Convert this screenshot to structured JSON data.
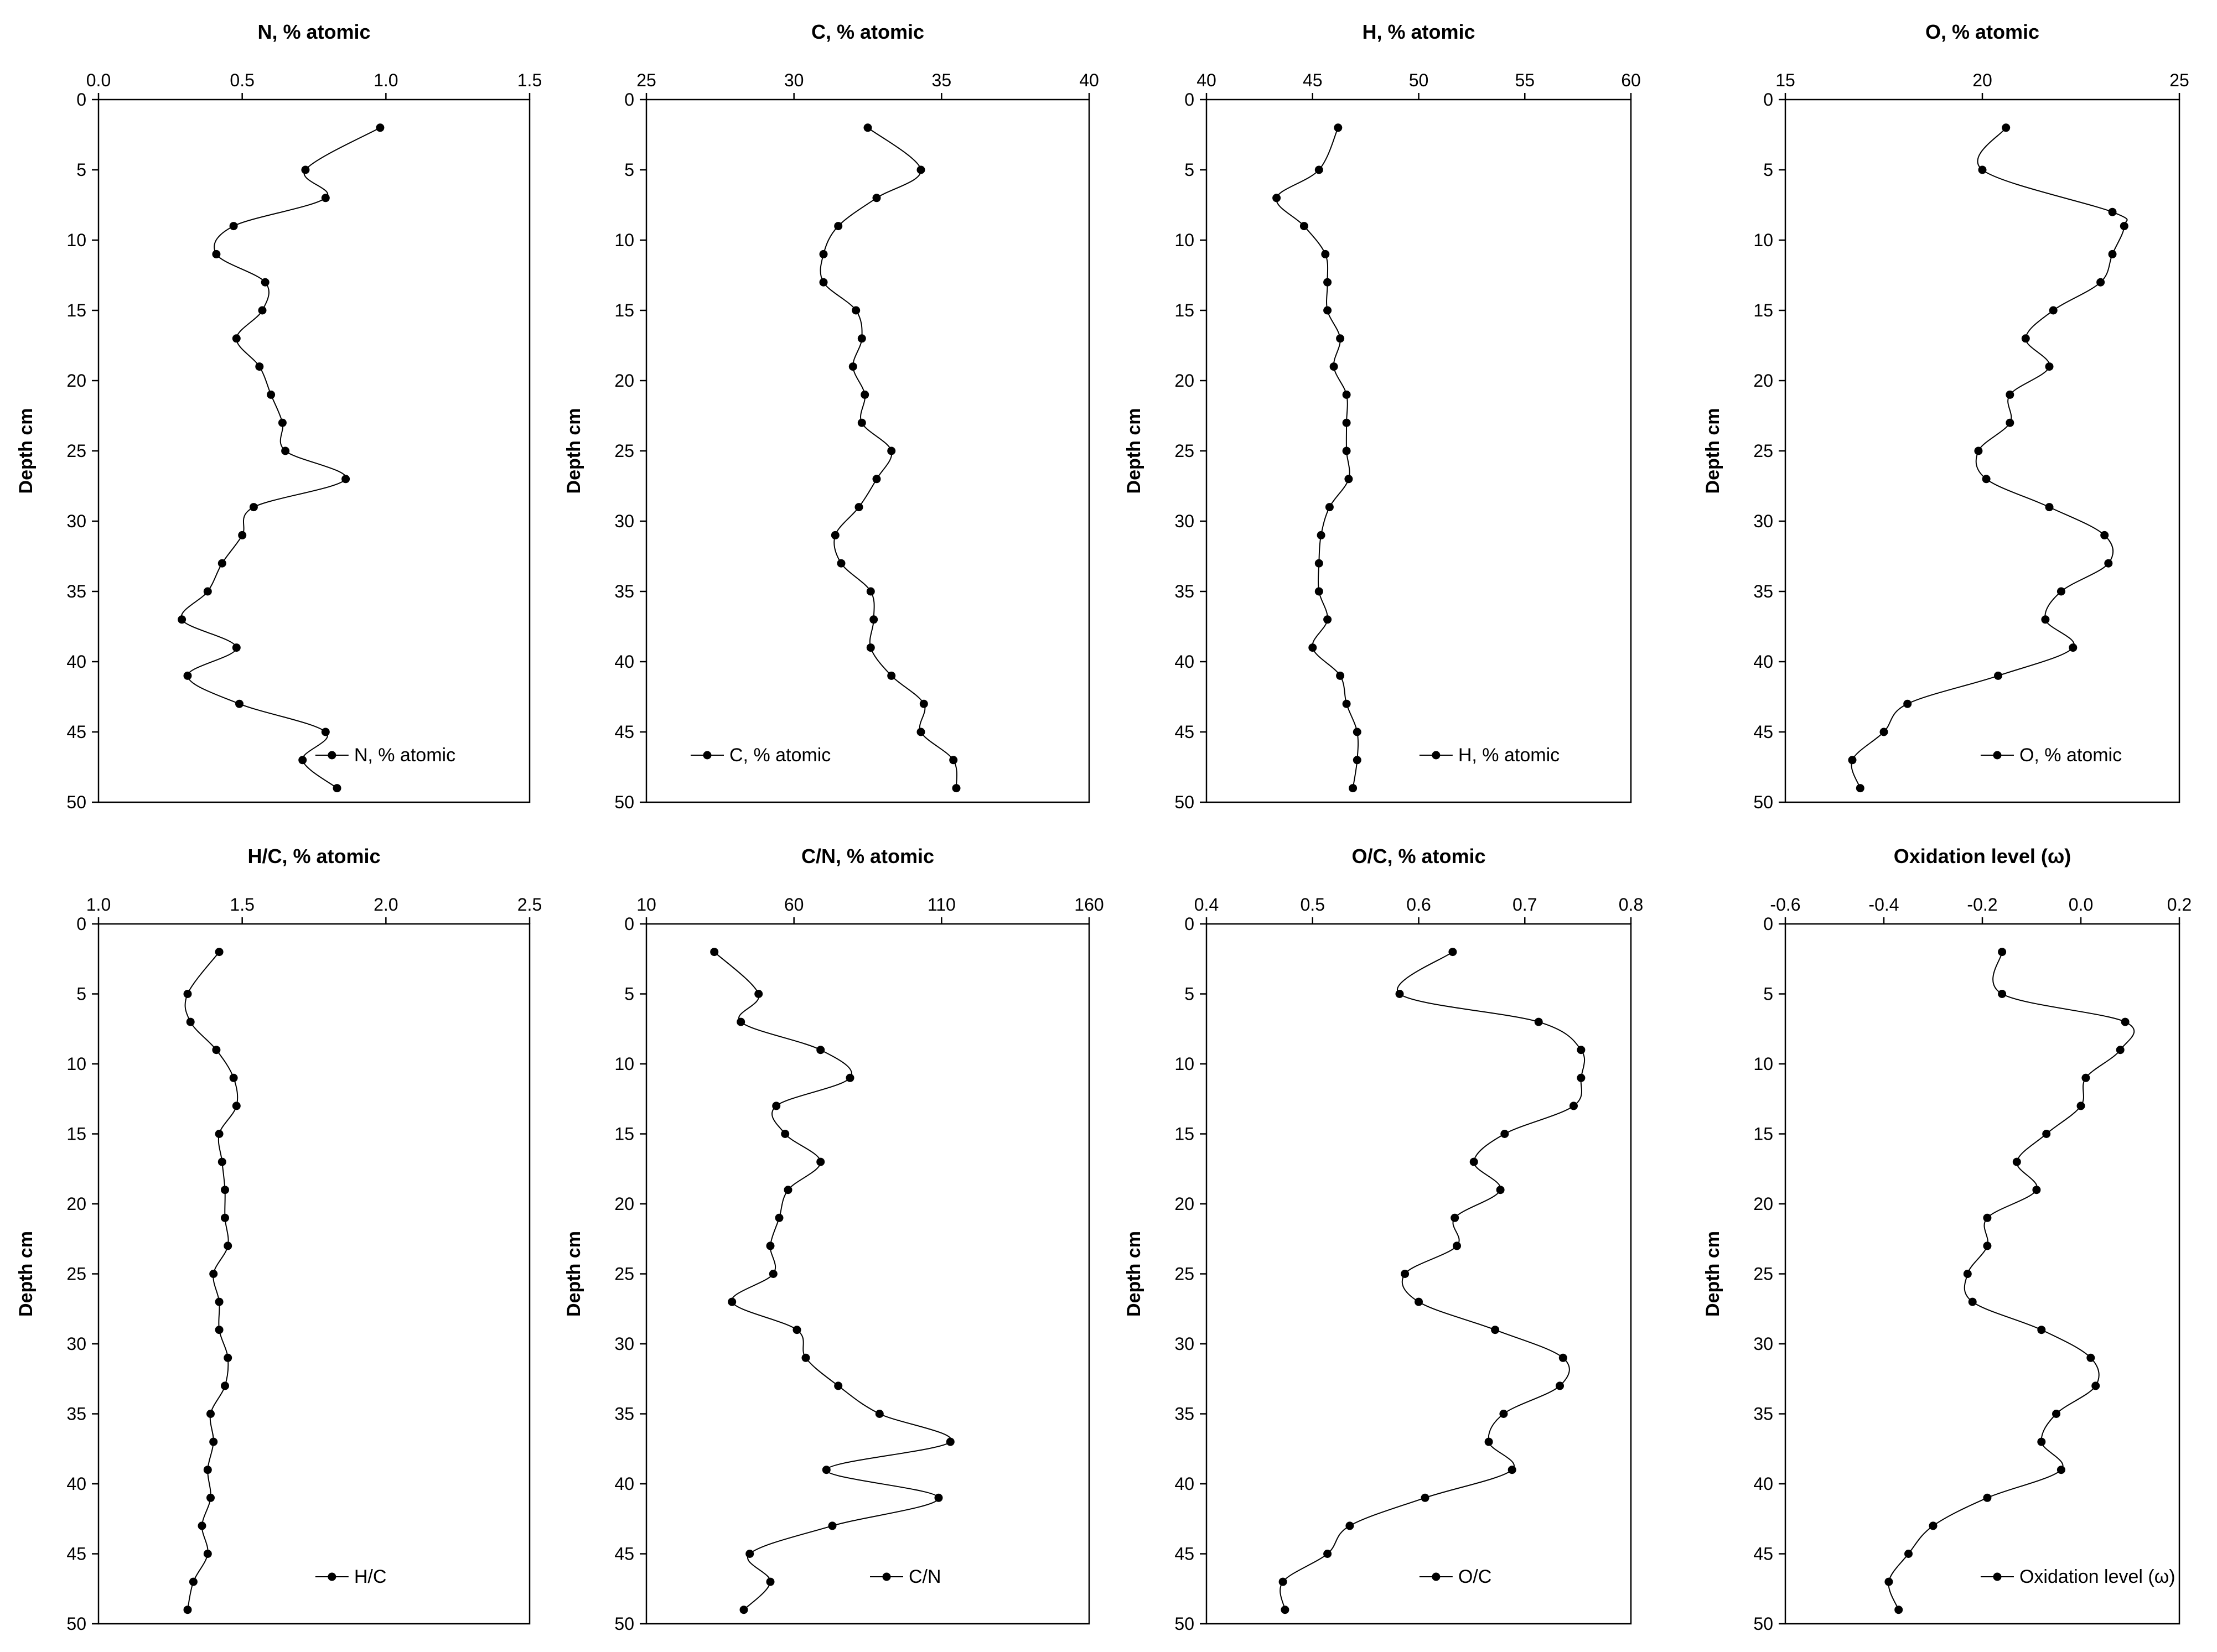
{
  "chart_data": [
    {
      "type": "line",
      "title": "N, % atomic",
      "xlabel": "N, % atomic",
      "ylabel": "Depth cm",
      "xlim": [
        0,
        1.5
      ],
      "xticks": [
        "0.0",
        "0.5",
        "1.0",
        "1.5"
      ],
      "ylim": [
        0,
        50
      ],
      "yticks": [
        "0",
        "5",
        "10",
        "15",
        "20",
        "25",
        "30",
        "35",
        "40",
        "45",
        "50"
      ],
      "legend": "N, % atomic",
      "legend_position": "bottom-right",
      "series": [
        {
          "name": "N, % atomic",
          "x": [
            0.98,
            0.72,
            0.79,
            0.47,
            0.41,
            0.58,
            0.57,
            0.48,
            0.56,
            0.6,
            0.64,
            0.65,
            0.86,
            0.54,
            0.5,
            0.43,
            0.38,
            0.29,
            0.48,
            0.31,
            0.49,
            0.79,
            0.71,
            0.83
          ],
          "y": [
            2,
            5,
            7,
            9,
            11,
            13,
            15,
            17,
            19,
            21,
            23,
            25,
            27,
            29,
            31,
            33,
            35,
            37,
            39,
            41,
            43,
            45,
            47,
            49
          ]
        }
      ]
    },
    {
      "type": "line",
      "title": "C, % atomic",
      "xlabel": "C, % atomic",
      "ylabel": "Depth cm",
      "xlim": [
        25,
        40
      ],
      "xticks": [
        "25",
        "30",
        "35",
        "40"
      ],
      "ylim": [
        0,
        50
      ],
      "yticks": [
        "0",
        "5",
        "10",
        "15",
        "20",
        "25",
        "30",
        "35",
        "40",
        "45",
        "50"
      ],
      "legend": "C, % atomic",
      "legend_position": "bottom-left",
      "series": [
        {
          "name": "C, % atomic",
          "x": [
            32.5,
            34.3,
            32.8,
            31.5,
            31.0,
            31.0,
            32.1,
            32.3,
            32.0,
            32.4,
            32.3,
            33.3,
            32.8,
            32.2,
            31.4,
            31.6,
            32.6,
            32.7,
            32.6,
            33.3,
            34.4,
            34.3,
            35.4,
            35.5
          ],
          "y": [
            2,
            5,
            7,
            9,
            11,
            13,
            15,
            17,
            19,
            21,
            23,
            25,
            27,
            29,
            31,
            33,
            35,
            37,
            39,
            41,
            43,
            45,
            47,
            49
          ]
        }
      ]
    },
    {
      "type": "line",
      "title": "H, % atomic",
      "xlabel": "H, % atomic",
      "ylabel": "Depth cm",
      "xlim": [
        40,
        60
      ],
      "xticks": [
        "40",
        "45",
        "50",
        "55",
        "60"
      ],
      "ylim": [
        0,
        50
      ],
      "yticks": [
        "0",
        "5",
        "10",
        "15",
        "20",
        "25",
        "30",
        "35",
        "40",
        "45",
        "50"
      ],
      "legend": "H, % atomic",
      "legend_position": "bottom-right",
      "series": [
        {
          "name": "H, % atomic",
          "x": [
            46.2,
            45.3,
            43.3,
            44.6,
            45.6,
            45.7,
            45.7,
            46.3,
            46.0,
            46.6,
            46.6,
            46.6,
            46.7,
            45.8,
            45.4,
            45.3,
            45.3,
            45.7,
            45.0,
            46.3,
            46.6,
            47.1,
            47.1,
            46.9
          ],
          "y": [
            2,
            5,
            7,
            9,
            11,
            13,
            15,
            17,
            19,
            21,
            23,
            25,
            27,
            29,
            31,
            33,
            35,
            37,
            39,
            41,
            43,
            45,
            47,
            49
          ]
        }
      ]
    },
    {
      "type": "line",
      "title": "O, % atomic",
      "xlabel": "O, % atomic",
      "ylabel": "Depth cm",
      "xlim": [
        15,
        25
      ],
      "xticks": [
        "15",
        "20",
        "25"
      ],
      "ylim": [
        0,
        50
      ],
      "yticks": [
        "0",
        "5",
        "10",
        "15",
        "20",
        "25",
        "30",
        "35",
        "40",
        "45",
        "50"
      ],
      "legend": "O, % atomic",
      "legend_position": "bottom-right",
      "series": [
        {
          "name": "O, % atomic",
          "x": [
            20.6,
            20.0,
            23.3,
            23.6,
            23.3,
            23.0,
            21.8,
            21.1,
            21.7,
            20.7,
            20.7,
            19.9,
            20.1,
            21.7,
            23.1,
            23.2,
            22.0,
            21.6,
            22.3,
            20.4,
            18.1,
            17.5,
            16.7,
            16.9
          ],
          "y": [
            2,
            5,
            8,
            9,
            11,
            13,
            15,
            17,
            19,
            21,
            23,
            25,
            27,
            29,
            31,
            33,
            35,
            37,
            39,
            41,
            43,
            45,
            47,
            49
          ]
        }
      ]
    },
    {
      "type": "line",
      "title": "H/C, % atomic",
      "xlabel": "H/C, % atomic",
      "ylabel": "Depth cm",
      "xlim": [
        1.0,
        2.5
      ],
      "xticks": [
        "1.0",
        "1.5",
        "2.0",
        "2.5"
      ],
      "ylim": [
        0,
        50
      ],
      "yticks": [
        "0",
        "5",
        "10",
        "15",
        "20",
        "25",
        "30",
        "35",
        "40",
        "45",
        "50"
      ],
      "legend": "H/C",
      "legend_position": "bottom-right",
      "series": [
        {
          "name": "H/C",
          "x": [
            1.42,
            1.31,
            1.32,
            1.41,
            1.47,
            1.48,
            1.42,
            1.43,
            1.44,
            1.44,
            1.45,
            1.4,
            1.42,
            1.42,
            1.45,
            1.44,
            1.39,
            1.4,
            1.38,
            1.39,
            1.36,
            1.38,
            1.33,
            1.31
          ],
          "y": [
            2,
            5,
            7,
            9,
            11,
            13,
            15,
            17,
            19,
            21,
            23,
            25,
            27,
            29,
            31,
            33,
            35,
            37,
            39,
            41,
            43,
            45,
            47,
            49
          ]
        }
      ]
    },
    {
      "type": "line",
      "title": "C/N, % atomic",
      "xlabel": "C/N, % atomic",
      "ylabel": "Depth cm",
      "xlim": [
        10,
        160
      ],
      "xticks": [
        "10",
        "60",
        "110",
        "160"
      ],
      "ylim": [
        0,
        50
      ],
      "yticks": [
        "0",
        "5",
        "10",
        "15",
        "20",
        "25",
        "30",
        "35",
        "40",
        "45",
        "50"
      ],
      "legend": "C/N",
      "legend_position": "bottom-right",
      "series": [
        {
          "name": "C/N",
          "x": [
            33,
            48,
            42,
            69,
            79,
            54,
            57,
            69,
            58,
            55,
            52,
            53,
            39,
            61,
            64,
            75,
            89,
            113,
            71,
            109,
            73,
            45,
            52,
            43
          ],
          "y": [
            2,
            5,
            7,
            9,
            11,
            13,
            15,
            17,
            19,
            21,
            23,
            25,
            27,
            29,
            31,
            33,
            35,
            37,
            39,
            41,
            43,
            45,
            47,
            49
          ]
        }
      ]
    },
    {
      "type": "line",
      "title": "O/C, % atomic",
      "xlabel": "O/C, % atomic",
      "ylabel": "Depth cm",
      "xlim": [
        0.4,
        0.8
      ],
      "xticks": [
        "0.4",
        "0.5",
        "0.6",
        "0.7",
        "0.8"
      ],
      "ylim": [
        0,
        50
      ],
      "yticks": [
        "0",
        "5",
        "10",
        "15",
        "20",
        "25",
        "30",
        "35",
        "40",
        "45",
        "50"
      ],
      "legend": "O/C",
      "legend_position": "bottom-right",
      "series": [
        {
          "name": "O/C",
          "x": [
            0.632,
            0.582,
            0.713,
            0.753,
            0.753,
            0.746,
            0.681,
            0.652,
            0.677,
            0.634,
            0.636,
            0.587,
            0.6,
            0.672,
            0.736,
            0.733,
            0.68,
            0.666,
            0.688,
            0.606,
            0.535,
            0.514,
            0.472,
            0.474
          ],
          "y": [
            2,
            5,
            7,
            9,
            11,
            13,
            15,
            17,
            19,
            21,
            23,
            25,
            27,
            29,
            31,
            33,
            35,
            37,
            39,
            41,
            43,
            45,
            47,
            49
          ]
        }
      ]
    },
    {
      "type": "line",
      "title": "Oxidation level (ω)",
      "xlabel": "Oxidation level (ω)",
      "ylabel": "Depth cm",
      "xlim": [
        -0.6,
        0.2
      ],
      "xticks": [
        "-0.6",
        "-0.4",
        "-0.2",
        "0.0",
        "0.2"
      ],
      "ylim": [
        0,
        50
      ],
      "yticks": [
        "0",
        "5",
        "10",
        "15",
        "20",
        "25",
        "30",
        "35",
        "40",
        "45",
        "50"
      ],
      "legend": "Oxidation level (ω)",
      "legend_position": "bottom-right",
      "series": [
        {
          "name": "Oxidation level (ω)",
          "x": [
            -0.16,
            -0.16,
            0.09,
            0.08,
            0.01,
            0.0,
            -0.07,
            -0.13,
            -0.09,
            -0.19,
            -0.19,
            -0.23,
            -0.22,
            -0.08,
            0.02,
            0.03,
            -0.05,
            -0.08,
            -0.04,
            -0.19,
            -0.3,
            -0.35,
            -0.39,
            -0.37
          ],
          "y": [
            2,
            5,
            7,
            9,
            11,
            13,
            15,
            17,
            19,
            21,
            23,
            25,
            27,
            29,
            31,
            33,
            35,
            37,
            39,
            41,
            43,
            45,
            47,
            49
          ]
        }
      ]
    }
  ]
}
